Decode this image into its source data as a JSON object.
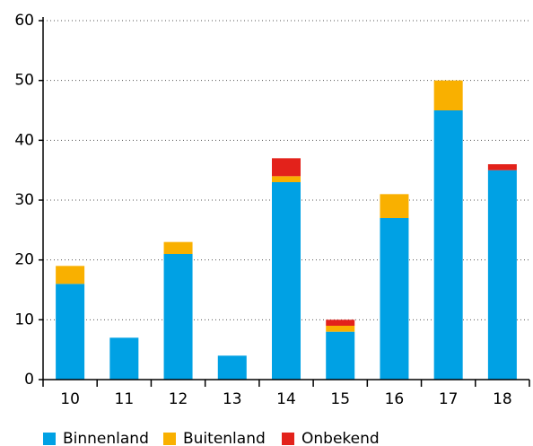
{
  "chart_data": {
    "type": "stacked_bar",
    "categories": [
      "10",
      "11",
      "12",
      "13",
      "14",
      "15",
      "16",
      "17",
      "18"
    ],
    "series": [
      {
        "name": "Binnenland",
        "color": "#00a1e4",
        "values": [
          16,
          7,
          21,
          4,
          33,
          8,
          27,
          45,
          35
        ]
      },
      {
        "name": "Buitenland",
        "color": "#f9b000",
        "values": [
          3,
          0,
          2,
          0,
          1,
          1,
          4,
          5,
          0
        ]
      },
      {
        "name": "Onbekend",
        "color": "#e3221b",
        "values": [
          0,
          0,
          0,
          0,
          3,
          1,
          0,
          0,
          1
        ]
      }
    ],
    "ylim": [
      0,
      60
    ],
    "yticks": [
      0,
      10,
      20,
      30,
      40,
      50,
      60
    ],
    "grid": true,
    "legend": "bottom"
  }
}
